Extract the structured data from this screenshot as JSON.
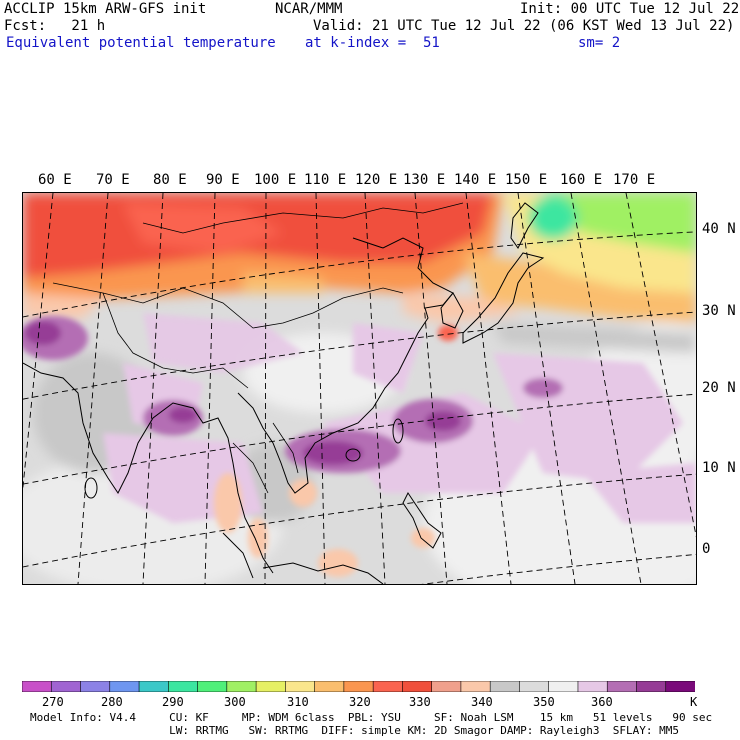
{
  "header": {
    "line1_left": "ACCLIP 15km ARW-GFS init",
    "line1_center": "NCAR/MMM",
    "line1_right": "Init: 00 UTC Tue 12 Jul 22",
    "line2_left": "Fcst:   21 h",
    "line2_right": "Valid: 21 UTC Tue 12 Jul 22 (06 KST Wed 13 Jul 22)",
    "line3_left": "Equivalent potential temperature",
    "line3_center": "at k-index =  51",
    "line3_right": "sm= 2"
  },
  "map": {
    "lon_labels": [
      "60 E",
      "70 E",
      "80 E",
      "90 E",
      "100 E",
      "110 E",
      "120 E",
      "130 E",
      "140 E",
      "150 E",
      "160 E",
      "170 E"
    ],
    "lat_labels": [
      "40 N",
      "30 N",
      "20 N",
      "10 N",
      "0"
    ]
  },
  "colorbar": {
    "colors": [
      "#c850c8",
      "#a064d2",
      "#8c82e6",
      "#6e96f0",
      "#3cc8c8",
      "#3ce6a0",
      "#50f07a",
      "#a0f064",
      "#e6f064",
      "#fae68c",
      "#fabe6e",
      "#fa9650",
      "#fa6450",
      "#f0503c",
      "#f0a08c",
      "#fac8aa",
      "#c8c8c8",
      "#dcdcdc",
      "#f0f0f0",
      "#e6c8e6",
      "#b46eb4",
      "#963c96",
      "#7a0a7a"
    ],
    "labels": [
      "270",
      "280",
      "290",
      "300",
      "310",
      "320",
      "330",
      "340",
      "350",
      "360"
    ],
    "unit": "K"
  },
  "footer": {
    "line1": "Model Info: V4.4     CU: KF     MP: WDM 6class  PBL: YSU     SF: Noah LSM    15 km   51 levels   90 sec",
    "line2": "                     LW: RRTMG   SW: RRTMG  DIFF: simple KM: 2D Smagor DAMP: Rayleigh3  SFLAY: MM5"
  }
}
